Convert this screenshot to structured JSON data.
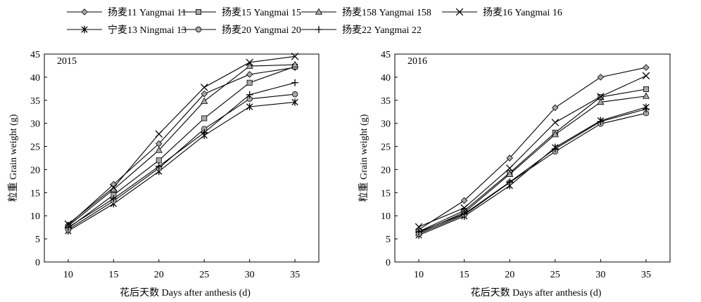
{
  "legend": [
    {
      "label": "扬麦11 Yangmai 11",
      "marker": "diamond"
    },
    {
      "label": "扬麦15 Yangmai 15",
      "marker": "square"
    },
    {
      "label": "扬麦158 Yangmai 158",
      "marker": "triangle"
    },
    {
      "label": "扬麦16 Yangmai 16",
      "marker": "x"
    },
    {
      "label": "宁麦13 Ningmai 13",
      "marker": "asterisk"
    },
    {
      "label": "扬麦20 Yangmai 20",
      "marker": "circle"
    },
    {
      "label": "扬麦22 Yangmai 22",
      "marker": "plus"
    }
  ],
  "chart_data": [
    {
      "type": "line",
      "title": "2015",
      "xlabel": "花后天数 Days after anthesis (d)",
      "ylabel": "粒重 Grain weight (g)",
      "ylim": [
        0,
        45
      ],
      "yticks": [
        0,
        5,
        10,
        15,
        20,
        25,
        30,
        35,
        40,
        45
      ],
      "x": [
        10,
        15,
        20,
        25,
        30,
        35
      ],
      "series": [
        {
          "name": "扬麦11 Yangmai 11",
          "values": [
            8.0,
            16.8,
            25.6,
            36.4,
            40.6,
            42.1
          ]
        },
        {
          "name": "扬麦15 Yangmai 15",
          "values": [
            7.3,
            14.5,
            22.0,
            31.1,
            38.8,
            42.3
          ]
        },
        {
          "name": "扬麦158 Yangmai 158",
          "values": [
            7.8,
            15.7,
            24.2,
            34.8,
            42.4,
            42.7
          ]
        },
        {
          "name": "扬麦16 Yangmai 16",
          "values": [
            8.2,
            16.1,
            27.7,
            37.8,
            43.2,
            44.5
          ]
        },
        {
          "name": "宁麦13 Ningmai 13",
          "values": [
            6.7,
            12.6,
            19.6,
            27.4,
            33.6,
            34.6
          ]
        },
        {
          "name": "扬麦20 Yangmai 20",
          "values": [
            7.0,
            13.2,
            20.3,
            28.8,
            35.3,
            36.3
          ]
        },
        {
          "name": "扬麦22 Yangmai 22",
          "values": [
            7.5,
            13.7,
            20.7,
            28.0,
            36.2,
            38.8
          ]
        }
      ]
    },
    {
      "type": "line",
      "title": "2016",
      "xlabel": "花后天数 Days after anthesis (d)",
      "ylabel": "粒重 Grain weight (g)",
      "ylim": [
        0,
        45
      ],
      "yticks": [
        0,
        5,
        10,
        15,
        20,
        25,
        30,
        35,
        40,
        45
      ],
      "x": [
        10,
        15,
        20,
        25,
        30,
        35
      ],
      "series": [
        {
          "name": "扬麦11 Yangmai 11",
          "values": [
            7.0,
            13.3,
            22.5,
            33.4,
            40.0,
            42.1
          ]
        },
        {
          "name": "扬麦15 Yangmai 15",
          "values": [
            6.6,
            11.1,
            19.3,
            28.0,
            35.7,
            37.4
          ]
        },
        {
          "name": "扬麦158 Yangmai 158",
          "values": [
            6.3,
            10.7,
            19.0,
            27.6,
            34.6,
            35.9
          ]
        },
        {
          "name": "扬麦16 Yangmai 16",
          "values": [
            7.6,
            11.7,
            20.3,
            30.2,
            35.8,
            40.3
          ]
        },
        {
          "name": "宁麦13 Ningmai 13",
          "values": [
            5.8,
            9.9,
            16.5,
            24.8,
            30.6,
            33.5
          ]
        },
        {
          "name": "扬麦20 Yangmai 20",
          "values": [
            6.1,
            10.2,
            17.2,
            23.9,
            29.9,
            32.2
          ]
        },
        {
          "name": "扬麦22 Yangmai 22",
          "values": [
            6.5,
            10.4,
            17.3,
            24.5,
            30.4,
            33.1
          ]
        }
      ]
    }
  ]
}
